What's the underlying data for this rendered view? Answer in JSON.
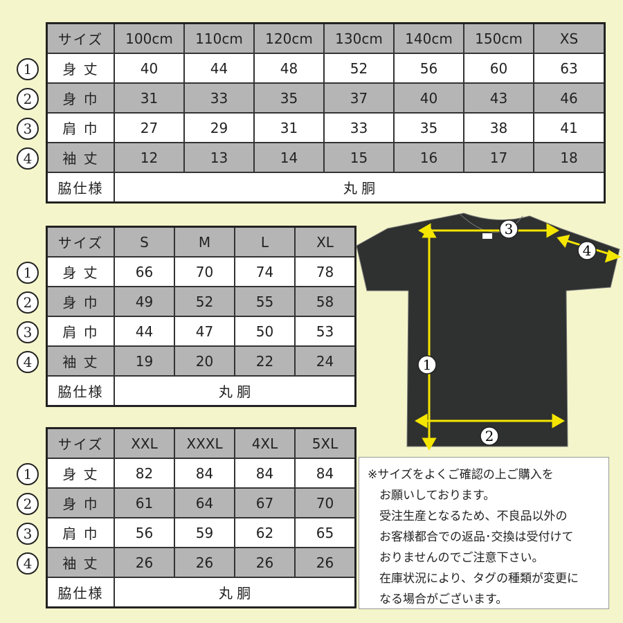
{
  "tables": [
    {
      "header": [
        "サイズ",
        "100cm",
        "110cm",
        "120cm",
        "130cm",
        "140cm",
        "150cm",
        "XS"
      ],
      "rows": [
        [
          "身 丈",
          "40",
          "44",
          "48",
          "52",
          "56",
          "60",
          "63"
        ],
        [
          "身 巾",
          "31",
          "33",
          "35",
          "37",
          "40",
          "43",
          "46"
        ],
        [
          "肩 巾",
          "27",
          "29",
          "31",
          "33",
          "35",
          "38",
          "41"
        ],
        [
          "袖 丈",
          "12",
          "13",
          "14",
          "15",
          "16",
          "17",
          "18"
        ]
      ],
      "footer": [
        "脇仕様",
        "丸 胴"
      ]
    },
    {
      "header": [
        "サイズ",
        "S",
        "M",
        "L",
        "XL"
      ],
      "rows": [
        [
          "身 丈",
          "66",
          "70",
          "74",
          "78"
        ],
        [
          "身 巾",
          "49",
          "52",
          "55",
          "58"
        ],
        [
          "肩 巾",
          "44",
          "47",
          "50",
          "53"
        ],
        [
          "袖 丈",
          "19",
          "20",
          "22",
          "24"
        ]
      ],
      "footer": [
        "脇仕様",
        "丸 胴"
      ]
    },
    {
      "header": [
        "サイズ",
        "XXL",
        "XXXL",
        "4XL",
        "5XL"
      ],
      "rows": [
        [
          "身 丈",
          "82",
          "84",
          "84",
          "84"
        ],
        [
          "身 巾",
          "61",
          "64",
          "67",
          "70"
        ],
        [
          "肩 巾",
          "56",
          "59",
          "62",
          "65"
        ],
        [
          "袖 丈",
          "26",
          "26",
          "26",
          "26"
        ]
      ],
      "footer": [
        "脇仕様",
        "丸 胴"
      ]
    }
  ],
  "row_markers": [
    "1",
    "2",
    "3",
    "4"
  ],
  "diagram": {
    "labels": [
      "1",
      "2",
      "3",
      "4"
    ],
    "shirt_color": "#2f3130",
    "arrow_color": "#f5e600"
  },
  "note": [
    "※サイズをよくご確認の上ご購入を",
    "　お願いしております。",
    "　受注生産となるため、不良品以外の",
    "　お客様都合での返品･交換は受付けて",
    "　おりませんのでご注意下さい。",
    "　在庫状況により、タグの種類が変更に",
    "　なる場合がございます。"
  ],
  "colors": {
    "background": "#f4f5cb",
    "header_gray": "#b5b5b5"
  }
}
